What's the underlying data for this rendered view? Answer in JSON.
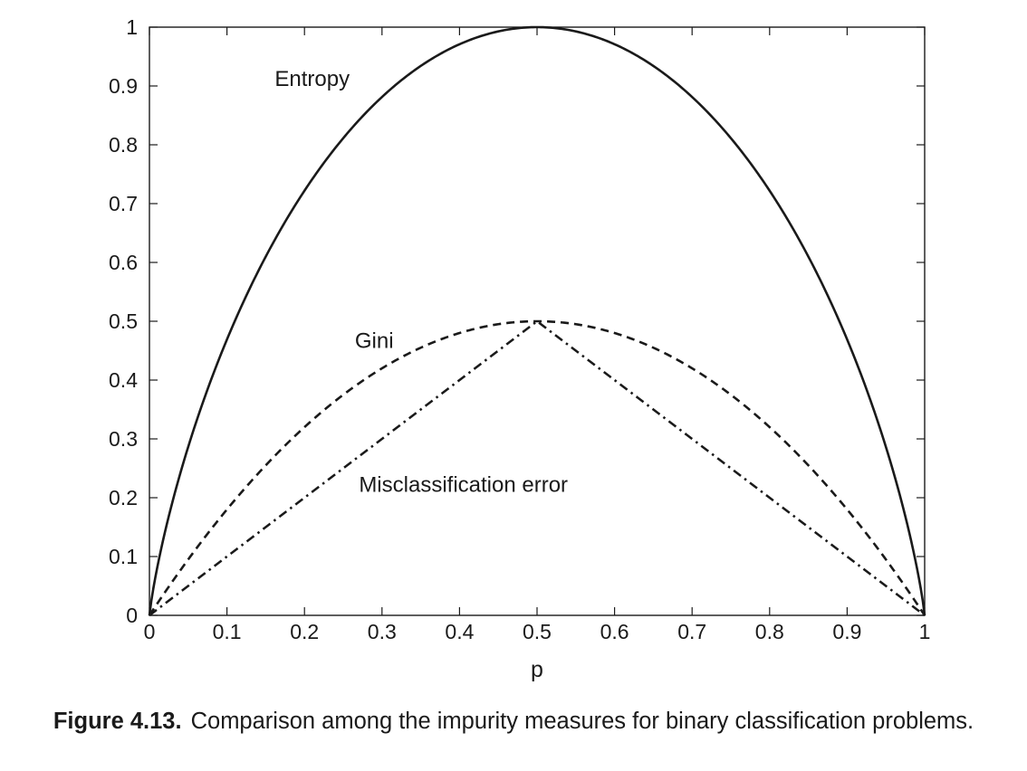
{
  "chart_data": {
    "type": "line",
    "xlabel": "p",
    "ylabel": "",
    "xlim": [
      0,
      1
    ],
    "ylim": [
      0,
      1
    ],
    "xticks": [
      "0",
      "0.1",
      "0.2",
      "0.3",
      "0.4",
      "0.5",
      "0.6",
      "0.7",
      "0.8",
      "0.9",
      "1"
    ],
    "yticks": [
      "0",
      "0.1",
      "0.2",
      "0.3",
      "0.4",
      "0.5",
      "0.6",
      "0.7",
      "0.8",
      "0.9",
      "1"
    ],
    "grid": false,
    "legend": "none",
    "x": [
      0,
      0.05,
      0.1,
      0.15,
      0.2,
      0.25,
      0.3,
      0.35,
      0.4,
      0.45,
      0.5,
      0.55,
      0.6,
      0.65,
      0.7,
      0.75,
      0.8,
      0.85,
      0.9,
      0.95,
      1
    ],
    "series": [
      {
        "name": "Entropy",
        "line_style": "solid",
        "values": [
          0,
          0.286,
          0.469,
          0.61,
          0.722,
          0.811,
          0.881,
          0.934,
          0.971,
          0.993,
          1,
          0.993,
          0.971,
          0.934,
          0.881,
          0.811,
          0.722,
          0.61,
          0.469,
          0.286,
          0
        ]
      },
      {
        "name": "Gini",
        "line_style": "dashed",
        "values": [
          0,
          0.095,
          0.18,
          0.255,
          0.32,
          0.375,
          0.42,
          0.455,
          0.48,
          0.495,
          0.5,
          0.495,
          0.48,
          0.455,
          0.42,
          0.375,
          0.32,
          0.255,
          0.18,
          0.095,
          0
        ]
      },
      {
        "name": "Misclassification error",
        "line_style": "dash-dot",
        "values": [
          0,
          0.05,
          0.1,
          0.15,
          0.2,
          0.25,
          0.3,
          0.35,
          0.4,
          0.45,
          0.5,
          0.45,
          0.4,
          0.35,
          0.3,
          0.25,
          0.2,
          0.15,
          0.1,
          0.05,
          0
        ]
      }
    ],
    "annotations": [
      {
        "text": "Entropy",
        "x": 0.21,
        "y": 0.9
      },
      {
        "text": "Gini",
        "x": 0.29,
        "y": 0.455
      },
      {
        "text": "Misclassification error",
        "x": 0.405,
        "y": 0.21
      }
    ]
  },
  "caption": {
    "number": "Figure 4.13.",
    "text": "Comparison among the impurity measures for binary classification problems."
  }
}
